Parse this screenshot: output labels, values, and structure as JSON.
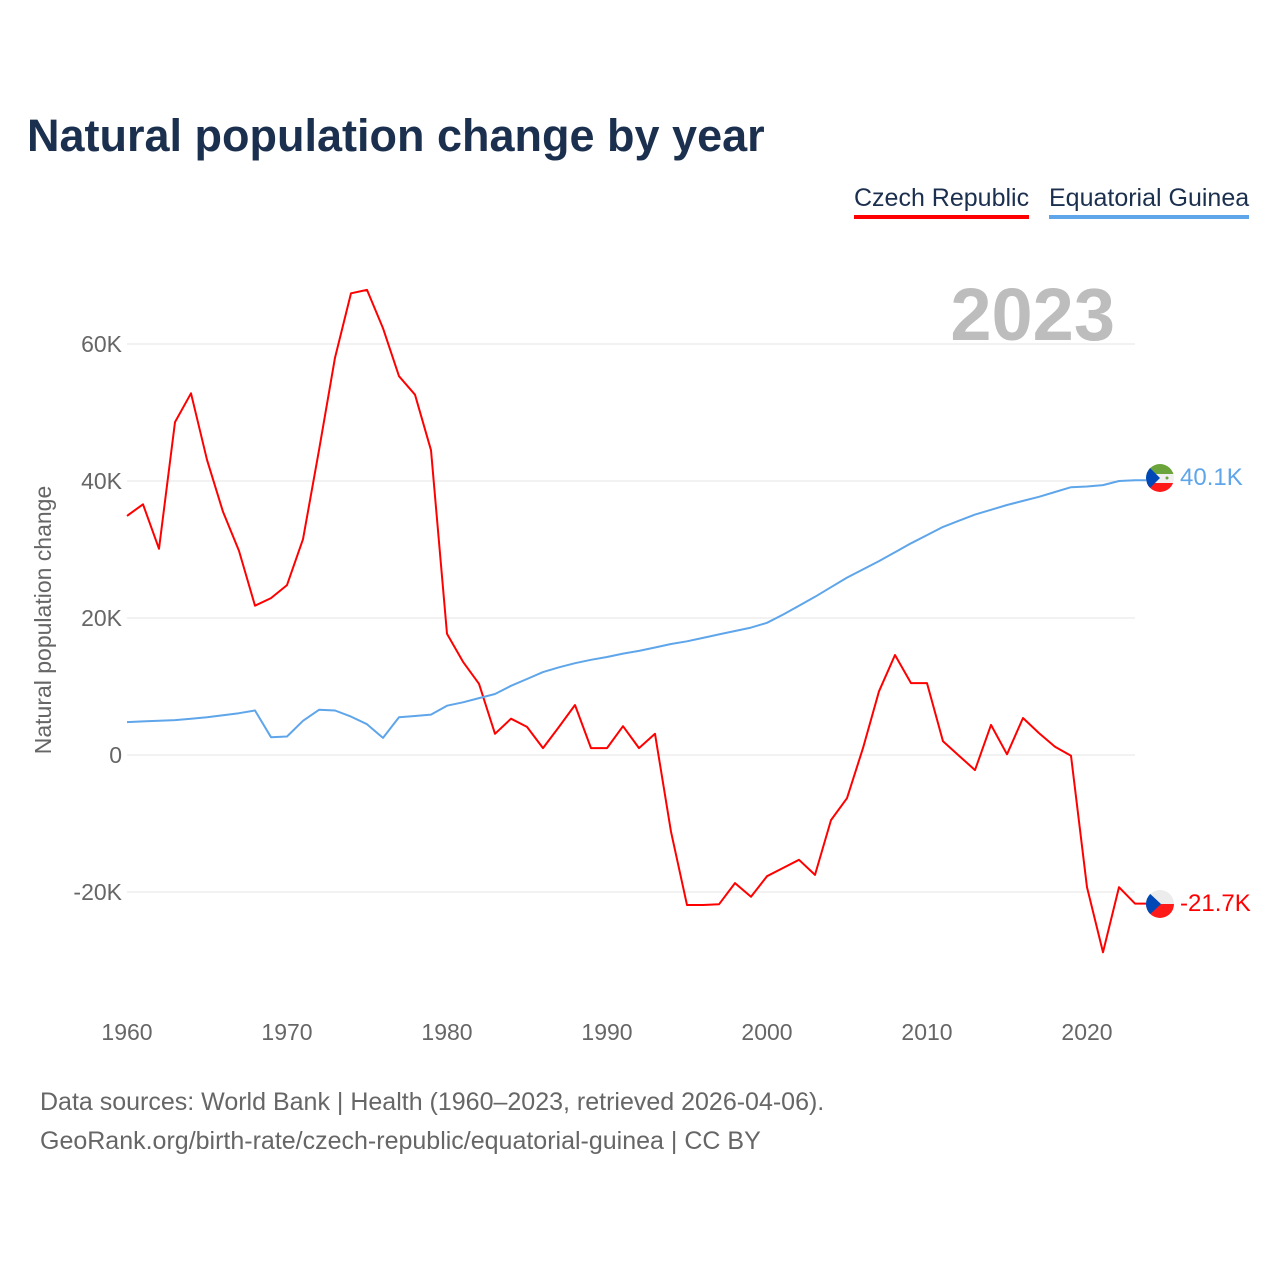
{
  "title": "Natural population change by year",
  "footer": {
    "line1": "Data sources: World Bank | Health (1960–2023, retrieved 2026-04-06).",
    "line2": "GeoRank.org/birth-rate/czech-republic/equatorial-guinea | CC BY"
  },
  "chart_data": {
    "type": "line",
    "title": "Natural population change by year",
    "xlabel": "",
    "ylabel": "Natural population change",
    "year_watermark": "2023",
    "xlim": [
      1960,
      2023
    ],
    "ylim": [
      -30,
      70
    ],
    "y_unit": "thousands",
    "grid": true,
    "legend_placement": "top-right",
    "x_ticks": [
      "1960",
      "1970",
      "1980",
      "1990",
      "2000",
      "2010",
      "2020"
    ],
    "y_ticks": [
      {
        "v": 60,
        "label": "60K"
      },
      {
        "v": 40,
        "label": "40K"
      },
      {
        "v": 20,
        "label": "20K"
      },
      {
        "v": 0,
        "label": "0"
      },
      {
        "v": -20,
        "label": "-20K"
      }
    ],
    "x_start": 1960,
    "series": [
      {
        "name": "Czech Republic",
        "color": "#ff0000",
        "flag": "czech-flag-icon",
        "end_label": "-21.7K",
        "values": [
          34.9,
          36.6,
          30.1,
          48.6,
          52.8,
          43.1,
          35.5,
          29.8,
          21.8,
          22.9,
          24.8,
          31.5,
          44.5,
          58.0,
          67.4,
          67.9,
          62.3,
          55.3,
          52.6,
          44.5,
          17.7,
          13.6,
          10.4,
          3.1,
          5.3,
          4.1,
          1.0,
          4.1,
          7.3,
          1.0,
          1.0,
          4.2,
          1.0,
          3.1,
          -11.2,
          -21.9,
          -21.9,
          -21.8,
          -18.7,
          -20.7,
          -17.7,
          -16.5,
          -15.3,
          -17.5,
          -9.5,
          -6.3,
          1.0,
          9.3,
          14.6,
          10.5,
          10.5,
          2.0,
          -0.1,
          -2.2,
          4.4,
          0.1,
          5.4,
          3.2,
          1.2,
          -0.1,
          -19.3,
          -28.8,
          -19.3,
          -21.7
        ]
      },
      {
        "name": "Equatorial Guinea",
        "color": "#5ea5ea",
        "flag": "equatorial-guinea-flag-icon",
        "end_label": "40.1K",
        "values": [
          4.8,
          4.9,
          5.0,
          5.1,
          5.3,
          5.5,
          5.8,
          6.1,
          6.5,
          2.6,
          2.7,
          5.0,
          6.6,
          6.5,
          5.6,
          4.5,
          2.5,
          5.5,
          5.7,
          5.9,
          7.2,
          7.7,
          8.3,
          8.9,
          10.1,
          11.1,
          12.1,
          12.8,
          13.4,
          13.9,
          14.3,
          14.8,
          15.2,
          15.7,
          16.2,
          16.6,
          17.1,
          17.6,
          18.1,
          18.6,
          19.3,
          20.5,
          21.8,
          23.1,
          24.5,
          25.9,
          27.1,
          28.3,
          29.6,
          30.9,
          32.1,
          33.3,
          34.2,
          35.1,
          35.8,
          36.5,
          37.1,
          37.7,
          38.4,
          39.1,
          39.2,
          39.4,
          40.0,
          40.1
        ]
      }
    ]
  }
}
